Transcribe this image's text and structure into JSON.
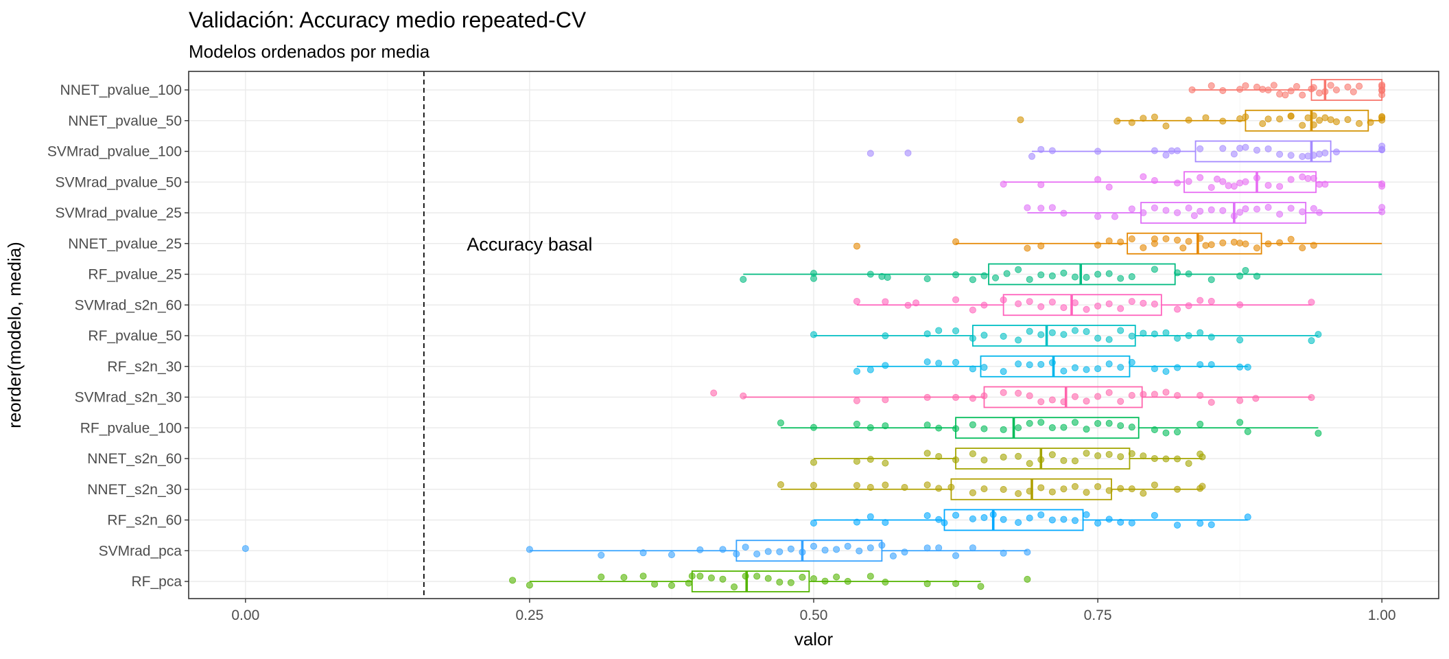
{
  "chart_data": {
    "type": "box",
    "title": "Validación: Accuracy medio repeated-CV",
    "subtitle": "Modelos ordenados por media",
    "xlabel": "valor",
    "ylabel": "reorder(modelo, media)",
    "xlim": [
      -0.05,
      1.05
    ],
    "xticks": [
      0.0,
      0.25,
      0.5,
      0.75,
      1.0
    ],
    "xtick_labels": [
      "0.00",
      "0.25",
      "0.50",
      "0.75",
      "1.00"
    ],
    "grid": true,
    "reference_line": {
      "x": 0.157,
      "style": "dashed"
    },
    "annotation": {
      "text": "Accuracy basal",
      "x": 0.25,
      "y": "NNET_pvalue_25"
    },
    "series": [
      {
        "name": "NNET_pvalue_100",
        "color": "#F8766D",
        "min": 0.833,
        "q1": 0.938,
        "median": 0.95,
        "q3": 1.0,
        "max": 1.0,
        "points": [
          0.833,
          0.86,
          0.88,
          0.89,
          0.895,
          0.9,
          0.905,
          0.91,
          0.92,
          0.938,
          0.94,
          0.945,
          0.95,
          0.955,
          0.96,
          0.97,
          0.975,
          0.98,
          1.0,
          1.0,
          1.0,
          1.0,
          1.0,
          0.93,
          0.85,
          0.875,
          0.915,
          0.925
        ]
      },
      {
        "name": "NNET_pvalue_50",
        "color": "#D39200",
        "min": 0.767,
        "q1": 0.88,
        "median": 0.938,
        "q3": 0.988,
        "max": 1.0,
        "points": [
          0.682,
          0.767,
          0.78,
          0.79,
          0.8,
          0.81,
          0.83,
          0.845,
          0.86,
          0.875,
          0.88,
          0.895,
          0.9,
          0.91,
          0.92,
          0.93,
          0.935,
          0.94,
          0.945,
          0.95,
          0.96,
          0.97,
          0.98,
          0.99,
          1.0,
          1.0,
          1.0,
          0.92,
          0.94,
          0.955
        ]
      },
      {
        "name": "SVMrad_pvalue_100",
        "color": "#A58AFF",
        "min": 0.692,
        "q1": 0.836,
        "median": 0.938,
        "q3": 0.955,
        "max": 1.0,
        "points": [
          0.55,
          0.583,
          0.692,
          0.7,
          0.71,
          0.75,
          0.8,
          0.81,
          0.815,
          0.82,
          0.84,
          0.86,
          0.87,
          0.88,
          0.9,
          0.91,
          0.92,
          0.93,
          0.935,
          0.94,
          0.945,
          0.95,
          0.96,
          1.0,
          1.0,
          1.0,
          0.875,
          0.89
        ]
      },
      {
        "name": "SVMrad_pvalue_50",
        "color": "#E76BF3",
        "min": 0.667,
        "q1": 0.826,
        "median": 0.89,
        "q3": 0.942,
        "max": 1.0,
        "points": [
          0.667,
          0.7,
          0.75,
          0.76,
          0.79,
          0.8,
          0.82,
          0.83,
          0.84,
          0.85,
          0.86,
          0.87,
          0.875,
          0.88,
          0.89,
          0.9,
          0.91,
          0.92,
          0.93,
          0.94,
          0.945,
          0.95,
          1.0,
          1.0,
          0.855,
          0.865,
          0.935
        ]
      },
      {
        "name": "SVMrad_pvalue_25",
        "color": "#DF70F8",
        "min": 0.688,
        "q1": 0.788,
        "median": 0.87,
        "q3": 0.933,
        "max": 1.0,
        "points": [
          0.688,
          0.7,
          0.71,
          0.72,
          0.75,
          0.765,
          0.78,
          0.79,
          0.8,
          0.81,
          0.82,
          0.83,
          0.84,
          0.85,
          0.86,
          0.87,
          0.88,
          0.89,
          0.9,
          0.91,
          0.92,
          0.93,
          0.94,
          0.945,
          1.0,
          1.0,
          0.835,
          0.875
        ]
      },
      {
        "name": "NNET_pvalue_25",
        "color": "#E58700",
        "min": 0.625,
        "q1": 0.776,
        "median": 0.838,
        "q3": 0.894,
        "max": 1.0,
        "points": [
          0.538,
          0.625,
          0.688,
          0.7,
          0.75,
          0.76,
          0.77,
          0.78,
          0.79,
          0.8,
          0.81,
          0.82,
          0.83,
          0.84,
          0.85,
          0.86,
          0.87,
          0.88,
          0.89,
          0.9,
          0.91,
          0.92,
          0.93,
          0.94,
          0.8,
          0.825,
          0.845,
          0.875
        ]
      },
      {
        "name": "RF_pvalue_25",
        "color": "#00BA80",
        "min": 0.438,
        "q1": 0.654,
        "median": 0.735,
        "q3": 0.818,
        "max": 1.0,
        "points": [
          0.438,
          0.5,
          0.5,
          0.55,
          0.56,
          0.565,
          0.6,
          0.625,
          0.64,
          0.65,
          0.66,
          0.67,
          0.68,
          0.69,
          0.7,
          0.71,
          0.72,
          0.73,
          0.74,
          0.75,
          0.76,
          0.77,
          0.78,
          0.8,
          0.82,
          0.83,
          0.85,
          0.875,
          0.88,
          0.89
        ]
      },
      {
        "name": "SVMrad_s2n_60",
        "color": "#FF62BC",
        "min": 0.538,
        "q1": 0.667,
        "median": 0.727,
        "q3": 0.806,
        "max": 0.938,
        "points": [
          0.538,
          0.563,
          0.583,
          0.59,
          0.625,
          0.64,
          0.65,
          0.667,
          0.68,
          0.69,
          0.7,
          0.71,
          0.72,
          0.73,
          0.74,
          0.75,
          0.76,
          0.77,
          0.78,
          0.79,
          0.8,
          0.82,
          0.83,
          0.84,
          0.85,
          0.875,
          0.938
        ]
      },
      {
        "name": "RF_pvalue_50",
        "color": "#00BFC4",
        "min": 0.5,
        "q1": 0.64,
        "median": 0.705,
        "q3": 0.783,
        "max": 0.944,
        "points": [
          0.5,
          0.563,
          0.6,
          0.61,
          0.625,
          0.64,
          0.65,
          0.667,
          0.68,
          0.69,
          0.7,
          0.71,
          0.72,
          0.73,
          0.74,
          0.75,
          0.76,
          0.77,
          0.78,
          0.79,
          0.8,
          0.81,
          0.82,
          0.83,
          0.84,
          0.85,
          0.875,
          0.938,
          0.944
        ]
      },
      {
        "name": "RF_s2n_30",
        "color": "#00B5EB",
        "min": 0.538,
        "q1": 0.647,
        "median": 0.711,
        "q3": 0.778,
        "max": 0.882,
        "points": [
          0.538,
          0.55,
          0.563,
          0.6,
          0.61,
          0.625,
          0.64,
          0.65,
          0.667,
          0.68,
          0.69,
          0.7,
          0.71,
          0.72,
          0.73,
          0.74,
          0.75,
          0.76,
          0.77,
          0.78,
          0.8,
          0.81,
          0.82,
          0.84,
          0.85,
          0.875,
          0.882
        ]
      },
      {
        "name": "SVMrad_s2n_30",
        "color": "#FF65AC",
        "min": 0.438,
        "q1": 0.65,
        "median": 0.722,
        "q3": 0.789,
        "max": 0.938,
        "points": [
          0.412,
          0.438,
          0.538,
          0.563,
          0.6,
          0.625,
          0.64,
          0.65,
          0.667,
          0.68,
          0.69,
          0.7,
          0.71,
          0.72,
          0.73,
          0.74,
          0.75,
          0.76,
          0.77,
          0.78,
          0.79,
          0.8,
          0.81,
          0.82,
          0.84,
          0.85,
          0.875,
          0.889,
          0.938
        ]
      },
      {
        "name": "RF_pvalue_100",
        "color": "#00BC59",
        "min": 0.471,
        "q1": 0.625,
        "median": 0.676,
        "q3": 0.786,
        "max": 0.944,
        "points": [
          0.471,
          0.5,
          0.538,
          0.55,
          0.563,
          0.6,
          0.61,
          0.625,
          0.64,
          0.65,
          0.667,
          0.68,
          0.69,
          0.7,
          0.71,
          0.72,
          0.73,
          0.74,
          0.75,
          0.76,
          0.77,
          0.78,
          0.8,
          0.81,
          0.82,
          0.84,
          0.875,
          0.882,
          0.944
        ]
      },
      {
        "name": "NNET_s2n_60",
        "color": "#A3A500",
        "min": 0.5,
        "q1": 0.625,
        "median": 0.7,
        "q3": 0.778,
        "max": 0.842,
        "points": [
          0.5,
          0.538,
          0.55,
          0.563,
          0.6,
          0.61,
          0.625,
          0.64,
          0.65,
          0.667,
          0.68,
          0.69,
          0.7,
          0.71,
          0.72,
          0.73,
          0.74,
          0.75,
          0.76,
          0.77,
          0.78,
          0.79,
          0.8,
          0.81,
          0.82,
          0.83,
          0.84,
          0.842
        ]
      },
      {
        "name": "NNET_s2n_30",
        "color": "#B0A000",
        "min": 0.471,
        "q1": 0.621,
        "median": 0.692,
        "q3": 0.762,
        "max": 0.842,
        "points": [
          0.471,
          0.5,
          0.538,
          0.55,
          0.563,
          0.58,
          0.6,
          0.61,
          0.621,
          0.64,
          0.65,
          0.667,
          0.68,
          0.69,
          0.7,
          0.71,
          0.72,
          0.73,
          0.74,
          0.75,
          0.76,
          0.77,
          0.78,
          0.79,
          0.8,
          0.82,
          0.84,
          0.842
        ]
      },
      {
        "name": "RF_s2n_60",
        "color": "#00A9FF",
        "min": 0.5,
        "q1": 0.615,
        "median": 0.658,
        "q3": 0.737,
        "max": 0.882,
        "points": [
          0.5,
          0.538,
          0.55,
          0.563,
          0.6,
          0.61,
          0.615,
          0.625,
          0.64,
          0.65,
          0.658,
          0.667,
          0.68,
          0.69,
          0.7,
          0.71,
          0.72,
          0.73,
          0.74,
          0.75,
          0.76,
          0.77,
          0.78,
          0.8,
          0.82,
          0.84,
          0.85,
          0.882
        ]
      },
      {
        "name": "SVMrad_pca",
        "color": "#35A2FF",
        "min": 0.25,
        "q1": 0.432,
        "median": 0.49,
        "q3": 0.56,
        "max": 0.688,
        "points": [
          0.0,
          0.25,
          0.313,
          0.35,
          0.375,
          0.4,
          0.42,
          0.432,
          0.44,
          0.45,
          0.46,
          0.47,
          0.48,
          0.49,
          0.5,
          0.51,
          0.52,
          0.53,
          0.54,
          0.55,
          0.56,
          0.57,
          0.58,
          0.6,
          0.61,
          0.625,
          0.64,
          0.667,
          0.688
        ]
      },
      {
        "name": "RF_pca",
        "color": "#53B400",
        "min": 0.25,
        "q1": 0.393,
        "median": 0.441,
        "q3": 0.496,
        "max": 0.647,
        "points": [
          0.235,
          0.25,
          0.313,
          0.333,
          0.35,
          0.36,
          0.375,
          0.39,
          0.393,
          0.4,
          0.41,
          0.42,
          0.43,
          0.44,
          0.45,
          0.46,
          0.47,
          0.48,
          0.49,
          0.5,
          0.51,
          0.52,
          0.53,
          0.55,
          0.563,
          0.6,
          0.625,
          0.647,
          0.688
        ]
      }
    ]
  }
}
